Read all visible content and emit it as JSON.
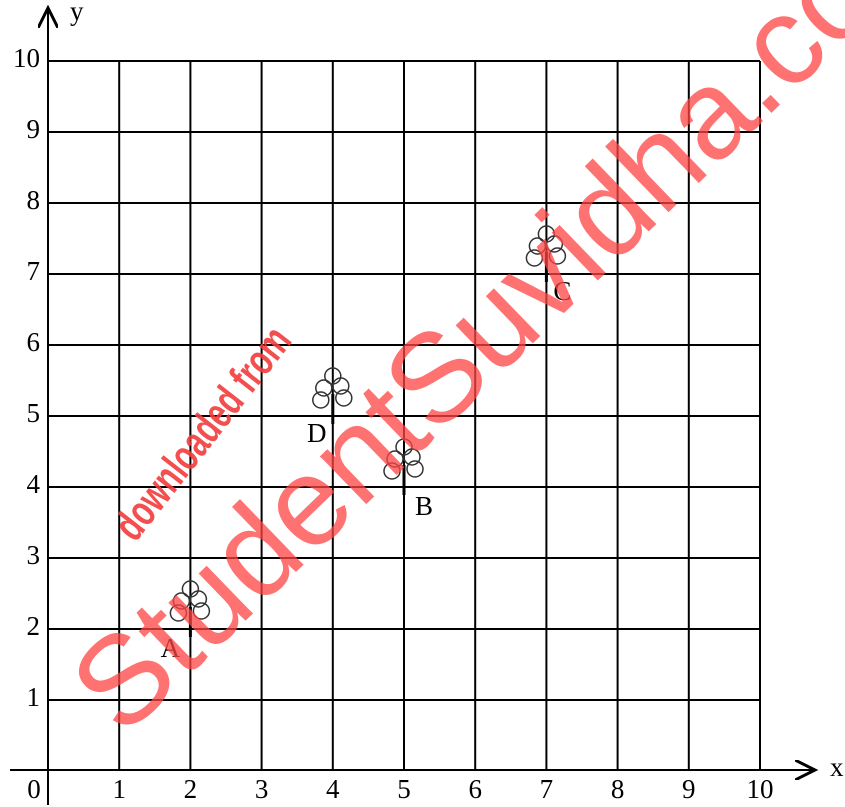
{
  "chart_data": {
    "type": "scatter",
    "x": [
      2,
      5,
      7,
      4
    ],
    "values": [
      2,
      4,
      7,
      5
    ],
    "point_labels": [
      "A",
      "B",
      "C",
      "D"
    ],
    "xlim": [
      0,
      10
    ],
    "ylim": [
      0,
      10
    ],
    "xticks": [
      0,
      1,
      2,
      3,
      4,
      5,
      6,
      7,
      8,
      9,
      10
    ],
    "yticks": [
      1,
      2,
      3,
      4,
      5,
      6,
      7,
      8,
      9,
      10
    ],
    "x_label": "x",
    "y_label": "y",
    "grid": true,
    "color": "#000000",
    "watermarks": [
      "downloaded from",
      "StudentSuvidha.co"
    ]
  }
}
